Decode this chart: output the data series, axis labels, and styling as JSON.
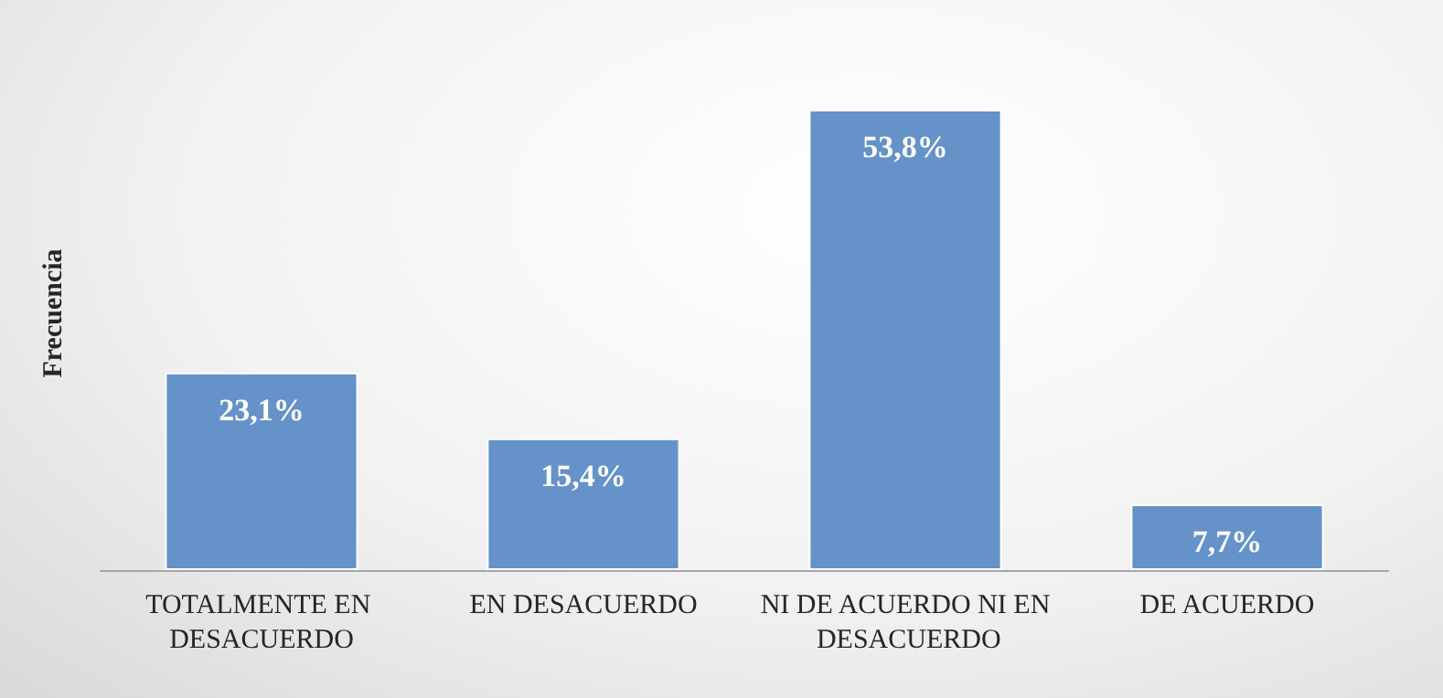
{
  "chart_data": {
    "type": "bar",
    "ylabel": "Frecuencia",
    "categories": [
      "TOTALMENTE EN DESACUERDO",
      "EN DESACUERDO",
      "NI DE ACUERDO NI EN DESACUERDO",
      "DE ACUERDO"
    ],
    "values": [
      23.1,
      15.4,
      53.8,
      7.7
    ],
    "value_labels": [
      "23,1%",
      "15,4%",
      "53,8%",
      "7,7%"
    ],
    "color": "#6592c8"
  }
}
